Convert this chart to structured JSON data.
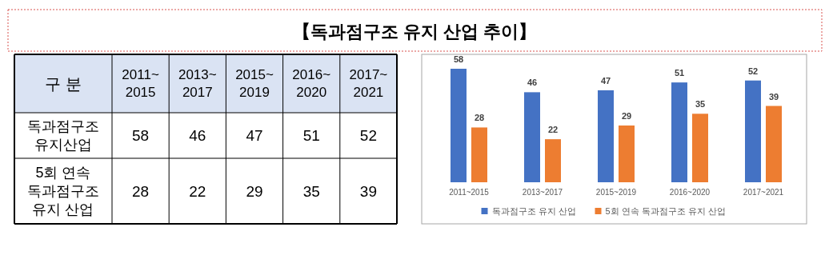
{
  "chart_data": [
    {
      "type": "other",
      "title": "【독과점구조 유지 산업 추이】",
      "annotations": [
        "구  분"
      ],
      "categories": [
        "2011~2015",
        "2013~2017",
        "2015~2019",
        "2016~2020",
        "2017~2021"
      ],
      "data_labels": true,
      "series": [
        {
          "name": "독과점구조 유지산업",
          "values": [
            58,
            46,
            47,
            51,
            52
          ]
        },
        {
          "name": "5회 연속 독과점구조 유지 산업",
          "values": [
            28,
            22,
            29,
            35,
            39
          ]
        }
      ]
    },
    {
      "type": "bar",
      "categories": [
        "2011~2015",
        "2013~2017",
        "2015~2019",
        "2016~2020",
        "2017~2021"
      ],
      "series": [
        {
          "name": "독과점구조 유지 산업",
          "color": "#4472c4",
          "values": [
            58,
            46,
            47,
            51,
            52
          ]
        },
        {
          "name": "5회 연속 독과점구조 유지 산업",
          "color": "#ed7d31",
          "values": [
            28,
            22,
            29,
            35,
            39
          ]
        }
      ],
      "data_labels": true,
      "legend": "bottom"
    }
  ]
}
